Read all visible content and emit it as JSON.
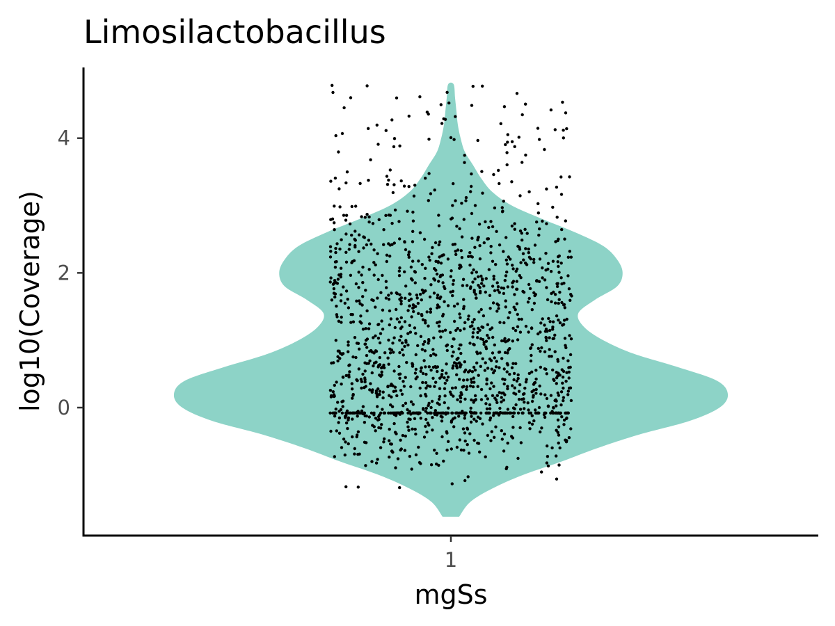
{
  "chart_data": {
    "type": "violin",
    "title": "Limosilactobacillus",
    "xlabel": "mgSs",
    "ylabel": "log10(Coverage)",
    "categories": [
      "1"
    ],
    "yticks": [
      0,
      2,
      4
    ],
    "ylim": [
      -1.9,
      5.05
    ],
    "grid": false,
    "legend": "none",
    "fill_color": "#8dd3c7",
    "point_color": "#000000",
    "violin": {
      "y_min": -1.62,
      "y_max": 4.8,
      "density_profile": [
        [
          -1.62,
          0.03
        ],
        [
          -1.4,
          0.07
        ],
        [
          -1.2,
          0.15
        ],
        [
          -1.0,
          0.26
        ],
        [
          -0.8,
          0.4
        ],
        [
          -0.6,
          0.53
        ],
        [
          -0.4,
          0.68
        ],
        [
          -0.2,
          0.86
        ],
        [
          0.0,
          0.97
        ],
        [
          0.2,
          1.0
        ],
        [
          0.4,
          0.96
        ],
        [
          0.6,
          0.82
        ],
        [
          0.8,
          0.66
        ],
        [
          1.0,
          0.55
        ],
        [
          1.2,
          0.48
        ],
        [
          1.4,
          0.46
        ],
        [
          1.6,
          0.52
        ],
        [
          1.8,
          0.6
        ],
        [
          2.0,
          0.62
        ],
        [
          2.2,
          0.6
        ],
        [
          2.4,
          0.55
        ],
        [
          2.6,
          0.45
        ],
        [
          2.8,
          0.33
        ],
        [
          3.0,
          0.22
        ],
        [
          3.2,
          0.15
        ],
        [
          3.4,
          0.11
        ],
        [
          3.6,
          0.08
        ],
        [
          3.8,
          0.05
        ],
        [
          4.0,
          0.035
        ],
        [
          4.2,
          0.025
        ],
        [
          4.4,
          0.02
        ],
        [
          4.6,
          0.015
        ],
        [
          4.8,
          0.01
        ]
      ]
    },
    "points": {
      "count": 1600,
      "y_range": [
        -1.6,
        4.8
      ],
      "jitter_half_width": 0.35,
      "dense_row_y": -0.08
    }
  }
}
